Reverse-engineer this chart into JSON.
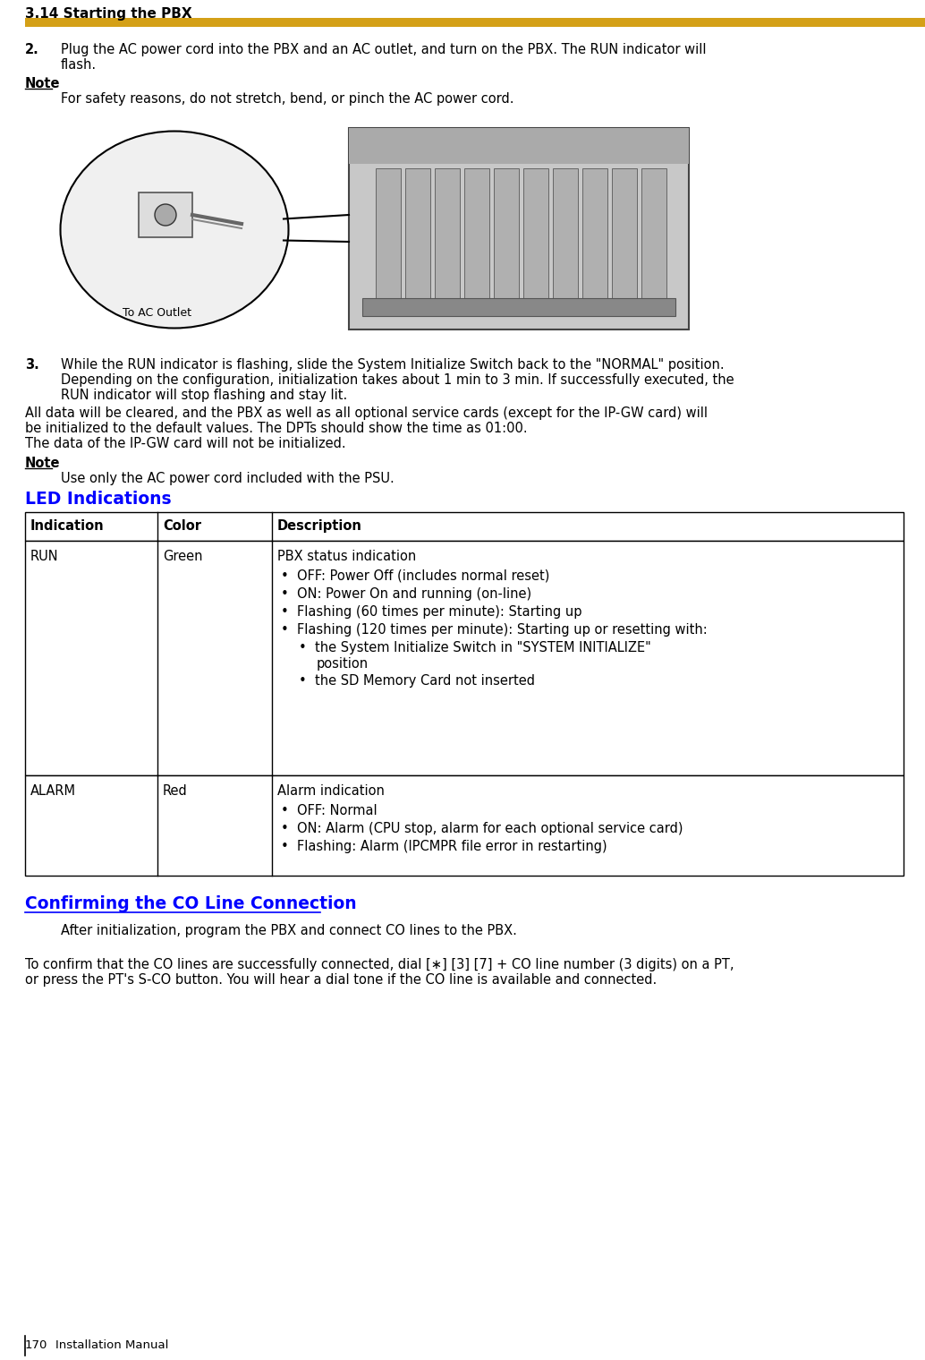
{
  "page_title": "3.14 Starting the PBX",
  "header_bar_color": "#D4A017",
  "background_color": "#FFFFFF",
  "section_heading_color": "#0000FF",
  "step2_text_line1": "Plug the AC power cord into the PBX and an AC outlet, and turn on the PBX. The RUN indicator will",
  "step2_text_line2": "flash.",
  "note1_text": "For safety reasons, do not stretch, bend, or pinch the AC power cord.",
  "step3_text_line1": "While the RUN indicator is flashing, slide the System Initialize Switch back to the \"NORMAL\" position.",
  "step3_text_line2": "Depending on the configuration, initialization takes about 1 min to 3 min. If successfully executed, the",
  "step3_text_line3": "RUN indicator will stop flashing and stay lit.",
  "para1_line1": "All data will be cleared, and the PBX as well as all optional service cards (except for the IP-GW card) will",
  "para1_line2": "be initialized to the default values. The DPTs should show the time as 01:00.",
  "para1_line3": "The data of the IP-GW card will not be initialized.",
  "note2_text": "Use only the AC power cord included with the PSU.",
  "led_heading": "LED Indications",
  "table_headers": [
    "Indication",
    "Color",
    "Description"
  ],
  "run_desc_line0": "PBX status indication",
  "run_bullets": [
    "OFF: Power Off (includes normal reset)",
    "ON: Power On and running (on-line)",
    "Flashing (60 times per minute): Starting up",
    "Flashing (120 times per minute): Starting up or resetting with:"
  ],
  "run_sub_bullets": [
    "the System Initialize Switch in \"SYSTEM INITIALIZE\"",
    "position",
    "the SD Memory Card not inserted"
  ],
  "alarm_desc_line0": "Alarm indication",
  "alarm_bullets": [
    "OFF: Normal",
    "ON: Alarm (CPU stop, alarm for each optional service card)",
    "Flashing: Alarm (IPCMPR file error in restarting)"
  ],
  "confirm_heading": "Confirming the CO Line Connection",
  "confirm_para1": "After initialization, program the PBX and connect CO lines to the PBX.",
  "confirm_para2_line1": "To confirm that the CO lines are successfully connected, dial [∗] [3] [7] + CO line number (3 digits) on a PT,",
  "confirm_para2_line2": "or press the PT's S-CO button. You will hear a dial tone if the CO line is available and connected.",
  "footer_page": "170",
  "footer_text": "Installation Manual",
  "image_label": "To AC Outlet"
}
